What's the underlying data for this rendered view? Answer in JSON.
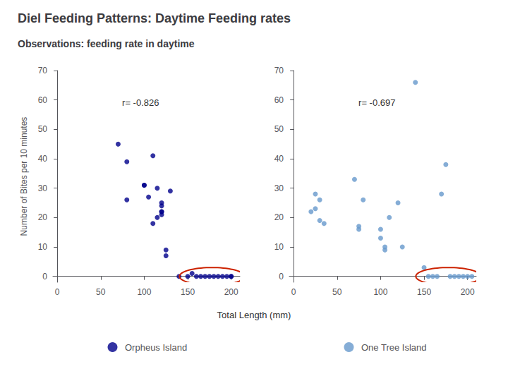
{
  "chart_data": [
    {
      "type": "scatter",
      "title": "Diel Feeding Patterns: Daytime Feeding rates",
      "subtitle": "Observations: feeding rate in daytime",
      "xlabel": "Total Length (mm)",
      "ylabel": "Number of Bites per 10 minutes",
      "annotation": "r= -0.826",
      "series": [
        {
          "name": "Orpheus Island",
          "color": "#00008B",
          "x": [
            70,
            80,
            80,
            100,
            100,
            105,
            110,
            110,
            115,
            115,
            120,
            120,
            120,
            120,
            120,
            125,
            125,
            130,
            140,
            150,
            155,
            160,
            165,
            170,
            175,
            180,
            185,
            190,
            195,
            200,
            200
          ],
          "values": [
            45,
            39,
            26,
            31,
            31,
            27,
            41,
            18,
            30,
            20,
            25,
            22,
            22,
            24,
            21,
            7,
            9,
            29,
            0,
            0,
            1,
            0,
            0,
            0,
            0,
            0,
            0,
            0,
            0,
            0,
            0
          ]
        }
      ],
      "ellipse": {
        "x": 178,
        "y": 0,
        "width": 75,
        "height": 6,
        "color": "#CC2200"
      },
      "xlim": [
        -5,
        210
      ],
      "xticks": [
        0,
        50,
        100,
        150,
        200
      ],
      "ylim": [
        -2,
        70
      ],
      "yticks": [
        0,
        10,
        20,
        30,
        40,
        50,
        60,
        70
      ],
      "grid": false,
      "legend": "bottom"
    },
    {
      "type": "scatter",
      "annotation": "r= -0.697",
      "series": [
        {
          "name": "One Tree Island",
          "color": "#6699CC",
          "x": [
            20,
            25,
            25,
            30,
            30,
            35,
            70,
            75,
            75,
            80,
            100,
            100,
            105,
            105,
            110,
            120,
            125,
            140,
            150,
            155,
            160,
            165,
            170,
            175,
            180,
            185,
            190,
            195,
            200,
            205
          ],
          "values": [
            22,
            23,
            28,
            19,
            26,
            18,
            33,
            17,
            16,
            26,
            16,
            13,
            9,
            10,
            20,
            25,
            10,
            66,
            3,
            0,
            0,
            0,
            28,
            38,
            0,
            0,
            0,
            0,
            0,
            0
          ]
        }
      ],
      "ellipse": {
        "x": 178,
        "y": 0,
        "width": 75,
        "height": 6,
        "color": "#CC2200"
      },
      "xlim": [
        -5,
        210
      ],
      "xticks": [
        0,
        50,
        100,
        150,
        200
      ],
      "ylim": [
        -2,
        70
      ],
      "yticks": [
        0,
        10,
        20,
        30,
        40,
        50,
        60,
        70
      ],
      "grid": false,
      "legend": "bottom"
    }
  ]
}
